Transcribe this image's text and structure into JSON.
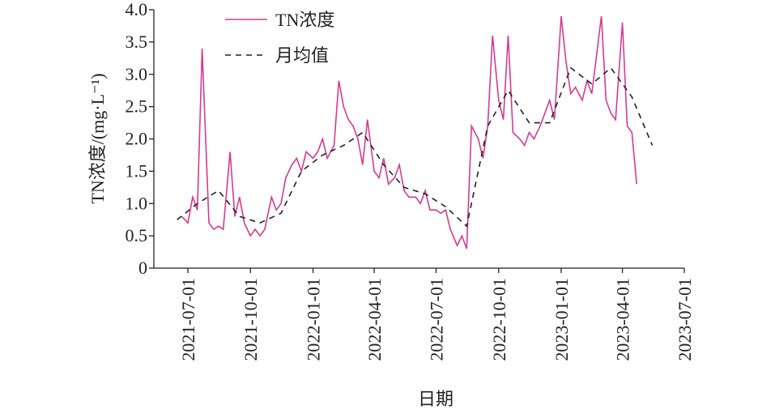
{
  "chart_data": {
    "type": "line",
    "xlabel": "日期",
    "ylabel": "TN浓度/(mg·L⁻¹)",
    "xlim": [
      "2021-05-12",
      "2023-07-01"
    ],
    "xticks": [
      "2021-07-01",
      "2021-10-01",
      "2022-01-01",
      "2022-04-01",
      "2022-07-01",
      "2022-10-01",
      "2023-01-01",
      "2023-04-01",
      "2023-07-01"
    ],
    "ylim": [
      0,
      4
    ],
    "yticks": [
      0,
      0.5,
      {
        "value": 1,
        "label": "1.0"
      },
      1.5,
      {
        "value": 2,
        "label": "2.0"
      },
      2.5,
      {
        "value": 3,
        "label": "3.0"
      },
      3.5,
      {
        "value": 4,
        "label": "4.0"
      }
    ],
    "legend": "top",
    "series": [
      {
        "name": "TN浓度",
        "color": "#d63a92",
        "style": "solid",
        "x": [
          "2021-06-22",
          "2021-07-01",
          "2021-07-08",
          "2021-07-15",
          "2021-07-22",
          "2021-08-01",
          "2021-08-08",
          "2021-08-15",
          "2021-08-22",
          "2021-09-01",
          "2021-09-08",
          "2021-09-15",
          "2021-09-22",
          "2021-10-01",
          "2021-10-08",
          "2021-10-15",
          "2021-10-22",
          "2021-11-01",
          "2021-11-08",
          "2021-11-15",
          "2021-11-22",
          "2021-12-01",
          "2021-12-08",
          "2021-12-15",
          "2021-12-22",
          "2022-01-01",
          "2022-01-08",
          "2022-01-15",
          "2022-01-22",
          "2022-02-01",
          "2022-02-08",
          "2022-02-15",
          "2022-02-22",
          "2022-03-01",
          "2022-03-08",
          "2022-03-15",
          "2022-03-22",
          "2022-04-01",
          "2022-04-08",
          "2022-04-15",
          "2022-04-22",
          "2022-05-01",
          "2022-05-08",
          "2022-05-15",
          "2022-05-22",
          "2022-06-01",
          "2022-06-08",
          "2022-06-15",
          "2022-06-22",
          "2022-07-01",
          "2022-07-08",
          "2022-07-15",
          "2022-07-22",
          "2022-08-01",
          "2022-08-08",
          "2022-08-15",
          "2022-08-22",
          "2022-09-01",
          "2022-09-08",
          "2022-09-15",
          "2022-09-22",
          "2022-10-01",
          "2022-10-08",
          "2022-10-15",
          "2022-10-22",
          "2022-11-01",
          "2022-11-08",
          "2022-11-15",
          "2022-11-22",
          "2022-12-01",
          "2022-12-08",
          "2022-12-15",
          "2022-12-22",
          "2023-01-01",
          "2023-01-08",
          "2023-01-15",
          "2023-01-22",
          "2023-02-01",
          "2023-02-08",
          "2023-02-15",
          "2023-02-22",
          "2023-03-01",
          "2023-03-08",
          "2023-03-15",
          "2023-03-22",
          "2023-04-01",
          "2023-04-08",
          "2023-04-15",
          "2023-04-22"
        ],
        "values": [
          0.8,
          0.7,
          1.1,
          0.9,
          3.4,
          0.7,
          0.6,
          0.65,
          0.6,
          1.8,
          0.8,
          1.1,
          0.7,
          0.5,
          0.6,
          0.5,
          0.6,
          1.1,
          0.9,
          1.0,
          1.4,
          1.6,
          1.7,
          1.5,
          1.8,
          1.7,
          1.8,
          2.0,
          1.7,
          1.9,
          2.9,
          2.5,
          2.3,
          2.2,
          2.0,
          1.6,
          2.3,
          1.5,
          1.4,
          1.7,
          1.3,
          1.4,
          1.6,
          1.2,
          1.1,
          1.1,
          1.0,
          1.2,
          0.9,
          0.9,
          0.85,
          0.9,
          0.6,
          0.35,
          0.5,
          0.3,
          2.2,
          2.0,
          1.7,
          2.2,
          3.6,
          2.6,
          2.3,
          3.6,
          2.1,
          2.0,
          1.9,
          2.1,
          2.0,
          2.2,
          2.4,
          2.6,
          2.3,
          3.9,
          3.2,
          2.7,
          2.8,
          2.6,
          2.9,
          2.7,
          3.3,
          3.9,
          2.6,
          2.4,
          2.3,
          3.8,
          2.2,
          2.1,
          1.3
        ]
      },
      {
        "name": "月均值",
        "color": "#222222",
        "style": "dashed",
        "x": [
          "2021-06-15",
          "2021-07-15",
          "2021-08-15",
          "2021-09-15",
          "2021-10-15",
          "2021-11-15",
          "2021-12-15",
          "2022-01-15",
          "2022-02-15",
          "2022-03-15",
          "2022-04-15",
          "2022-05-15",
          "2022-06-15",
          "2022-07-15",
          "2022-08-15",
          "2022-09-15",
          "2022-10-15",
          "2022-11-15",
          "2022-12-15",
          "2023-01-15",
          "2023-02-15",
          "2023-03-15",
          "2023-04-15",
          "2023-05-15"
        ],
        "values": [
          0.75,
          1.0,
          1.2,
          0.8,
          0.7,
          0.85,
          1.5,
          1.75,
          1.9,
          2.1,
          1.6,
          1.25,
          1.15,
          0.95,
          0.65,
          2.2,
          2.75,
          2.25,
          2.25,
          3.1,
          2.85,
          3.1,
          2.65,
          1.9
        ]
      }
    ]
  }
}
